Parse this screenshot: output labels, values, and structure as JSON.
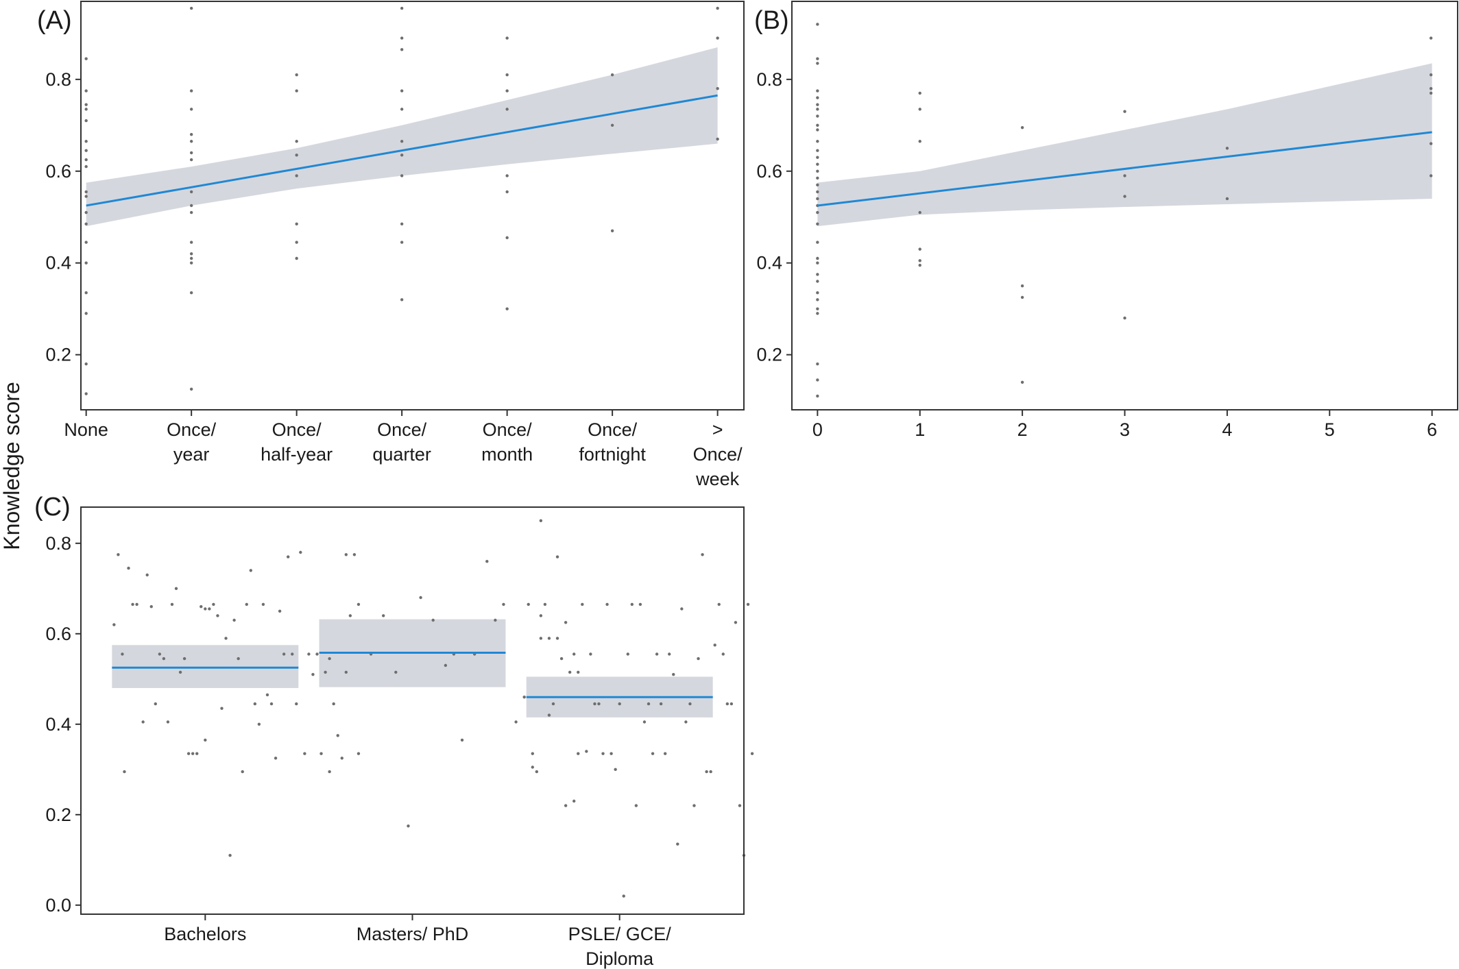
{
  "figure": {
    "ylabel": "Knowledge score",
    "colors": {
      "line": "#1f88d4",
      "band": "#d5d7de",
      "point": "#6e6e6e",
      "axis": "#333333"
    }
  },
  "chart_data": [
    {
      "panel": "(A)",
      "type": "scatter",
      "categories": [
        "None",
        "Once/ year",
        "Once/ half-year",
        "Once/ quarter",
        "Once/ month",
        "Once/ fortnight",
        "> Once/ week"
      ],
      "xlim": [
        -0.05,
        6.25
      ],
      "ylim": [
        0.08,
        0.97
      ],
      "yticks": [
        0.2,
        0.4,
        0.6,
        0.8
      ],
      "fit": {
        "x": [
          0,
          6
        ],
        "y": [
          0.525,
          0.765
        ]
      },
      "ci": {
        "x": [
          0,
          1,
          2,
          3,
          4,
          5,
          6
        ],
        "lower": [
          0.48,
          0.525,
          0.562,
          0.59,
          0.615,
          0.638,
          0.66
        ],
        "upper": [
          0.575,
          0.61,
          0.65,
          0.7,
          0.755,
          0.81,
          0.87
        ]
      },
      "points": [
        [
          0,
          0.845
        ],
        [
          0,
          0.775
        ],
        [
          0,
          0.745
        ],
        [
          0,
          0.735
        ],
        [
          0,
          0.71
        ],
        [
          0,
          0.665
        ],
        [
          0,
          0.645
        ],
        [
          0,
          0.625
        ],
        [
          0,
          0.61
        ],
        [
          0,
          0.555
        ],
        [
          0,
          0.545
        ],
        [
          0,
          0.51
        ],
        [
          0,
          0.485
        ],
        [
          0,
          0.445
        ],
        [
          0,
          0.4
        ],
        [
          0,
          0.335
        ],
        [
          0,
          0.29
        ],
        [
          0,
          0.18
        ],
        [
          0,
          0.115
        ],
        [
          1,
          0.955
        ],
        [
          1,
          0.775
        ],
        [
          1,
          0.735
        ],
        [
          1,
          0.68
        ],
        [
          1,
          0.665
        ],
        [
          1,
          0.64
        ],
        [
          1,
          0.625
        ],
        [
          1,
          0.555
        ],
        [
          1,
          0.525
        ],
        [
          1,
          0.51
        ],
        [
          1,
          0.445
        ],
        [
          1,
          0.42
        ],
        [
          1,
          0.41
        ],
        [
          1,
          0.4
        ],
        [
          1,
          0.335
        ],
        [
          1,
          0.125
        ],
        [
          2,
          0.81
        ],
        [
          2,
          0.775
        ],
        [
          2,
          0.665
        ],
        [
          2,
          0.635
        ],
        [
          2,
          0.59
        ],
        [
          2,
          0.485
        ],
        [
          2,
          0.445
        ],
        [
          2,
          0.41
        ],
        [
          3,
          0.955
        ],
        [
          3,
          0.89
        ],
        [
          3,
          0.865
        ],
        [
          3,
          0.775
        ],
        [
          3,
          0.735
        ],
        [
          3,
          0.665
        ],
        [
          3,
          0.635
        ],
        [
          3,
          0.59
        ],
        [
          3,
          0.485
        ],
        [
          3,
          0.445
        ],
        [
          3,
          0.32
        ],
        [
          4,
          0.89
        ],
        [
          4,
          0.81
        ],
        [
          4,
          0.775
        ],
        [
          4,
          0.735
        ],
        [
          4,
          0.59
        ],
        [
          4,
          0.555
        ],
        [
          4,
          0.455
        ],
        [
          4,
          0.3
        ],
        [
          5,
          0.81
        ],
        [
          5,
          0.7
        ],
        [
          5,
          0.47
        ],
        [
          6,
          0.955
        ],
        [
          6,
          0.89
        ],
        [
          6,
          0.78
        ],
        [
          6,
          0.67
        ]
      ]
    },
    {
      "panel": "(B)",
      "type": "scatter",
      "xticks": [
        0,
        1,
        2,
        3,
        4,
        5,
        6
      ],
      "xlim": [
        -0.25,
        6.25
      ],
      "ylim": [
        0.08,
        0.97
      ],
      "yticks": [
        0.2,
        0.4,
        0.6,
        0.8
      ],
      "fit": {
        "x": [
          0,
          6
        ],
        "y": [
          0.525,
          0.685
        ]
      },
      "ci": {
        "x": [
          0,
          1,
          2,
          3,
          4,
          5,
          6
        ],
        "lower": [
          0.48,
          0.505,
          0.515,
          0.522,
          0.528,
          0.534,
          0.54
        ],
        "upper": [
          0.575,
          0.6,
          0.645,
          0.69,
          0.735,
          0.785,
          0.835
        ]
      },
      "points": [
        [
          0,
          0.92
        ],
        [
          0,
          0.845
        ],
        [
          0,
          0.835
        ],
        [
          0,
          0.775
        ],
        [
          0,
          0.76
        ],
        [
          0,
          0.745
        ],
        [
          0,
          0.735
        ],
        [
          0,
          0.72
        ],
        [
          0,
          0.7
        ],
        [
          0,
          0.69
        ],
        [
          0,
          0.665
        ],
        [
          0,
          0.645
        ],
        [
          0,
          0.63
        ],
        [
          0,
          0.615
        ],
        [
          0,
          0.6
        ],
        [
          0,
          0.585
        ],
        [
          0,
          0.57
        ],
        [
          0,
          0.555
        ],
        [
          0,
          0.54
        ],
        [
          0,
          0.525
        ],
        [
          0,
          0.51
        ],
        [
          0,
          0.485
        ],
        [
          0,
          0.445
        ],
        [
          0,
          0.41
        ],
        [
          0,
          0.4
        ],
        [
          0,
          0.375
        ],
        [
          0,
          0.36
        ],
        [
          0,
          0.335
        ],
        [
          0,
          0.32
        ],
        [
          0,
          0.3
        ],
        [
          0,
          0.29
        ],
        [
          0,
          0.18
        ],
        [
          0,
          0.145
        ],
        [
          0,
          0.11
        ],
        [
          1,
          0.77
        ],
        [
          1,
          0.735
        ],
        [
          1,
          0.665
        ],
        [
          1,
          0.51
        ],
        [
          1,
          0.43
        ],
        [
          1,
          0.405
        ],
        [
          1,
          0.395
        ],
        [
          2,
          0.695
        ],
        [
          2,
          0.35
        ],
        [
          2,
          0.325
        ],
        [
          2,
          0.14
        ],
        [
          3,
          0.73
        ],
        [
          3,
          0.59
        ],
        [
          3,
          0.545
        ],
        [
          3,
          0.28
        ],
        [
          4,
          0.65
        ],
        [
          4,
          0.54
        ],
        [
          5.99,
          0.89
        ],
        [
          5.99,
          0.81
        ],
        [
          5.99,
          0.78
        ],
        [
          5.99,
          0.77
        ],
        [
          5.99,
          0.66
        ],
        [
          5.99,
          0.59
        ]
      ]
    },
    {
      "panel": "(C)",
      "type": "scatter",
      "categories": [
        "Bachelors",
        "Masters/ PhD",
        "PSLE/ GCE/ Diploma"
      ],
      "xlim": [
        0.4,
        3.6
      ],
      "ylim": [
        -0.02,
        0.88
      ],
      "yticks": [
        0.0,
        0.2,
        0.4,
        0.6,
        0.8
      ],
      "groups": [
        {
          "mean": 0.525,
          "lower": 0.48,
          "upper": 0.575,
          "x_start": 0.55,
          "x_end": 1.45
        },
        {
          "mean": 0.558,
          "lower": 0.482,
          "upper": 0.632,
          "x_start": 1.55,
          "x_end": 2.45
        },
        {
          "mean": 0.46,
          "lower": 0.415,
          "upper": 0.505,
          "x_start": 2.55,
          "x_end": 3.45
        }
      ],
      "points": [
        [
          0.56,
          0.62
        ],
        [
          0.58,
          0.775
        ],
        [
          0.6,
          0.555
        ],
        [
          0.61,
          0.295
        ],
        [
          0.63,
          0.745
        ],
        [
          0.65,
          0.665
        ],
        [
          0.67,
          0.665
        ],
        [
          0.7,
          0.405
        ],
        [
          0.72,
          0.73
        ],
        [
          0.74,
          0.66
        ],
        [
          0.76,
          0.445
        ],
        [
          0.78,
          0.555
        ],
        [
          0.8,
          0.545
        ],
        [
          0.82,
          0.405
        ],
        [
          0.84,
          0.665
        ],
        [
          0.86,
          0.7
        ],
        [
          0.88,
          0.515
        ],
        [
          0.9,
          0.545
        ],
        [
          0.92,
          0.335
        ],
        [
          0.94,
          0.335
        ],
        [
          0.96,
          0.335
        ],
        [
          0.98,
          0.66
        ],
        [
          1.0,
          0.365
        ],
        [
          1.0,
          0.655
        ],
        [
          1.02,
          0.655
        ],
        [
          1.04,
          0.665
        ],
        [
          1.06,
          0.64
        ],
        [
          1.08,
          0.435
        ],
        [
          1.1,
          0.59
        ],
        [
          1.12,
          0.11
        ],
        [
          1.14,
          0.63
        ],
        [
          1.16,
          0.545
        ],
        [
          1.18,
          0.295
        ],
        [
          1.2,
          0.665
        ],
        [
          1.22,
          0.74
        ],
        [
          1.24,
          0.445
        ],
        [
          1.26,
          0.4
        ],
        [
          1.28,
          0.665
        ],
        [
          1.3,
          0.465
        ],
        [
          1.32,
          0.445
        ],
        [
          1.34,
          0.325
        ],
        [
          1.36,
          0.65
        ],
        [
          1.38,
          0.555
        ],
        [
          1.4,
          0.77
        ],
        [
          1.42,
          0.555
        ],
        [
          1.44,
          0.445
        ],
        [
          1.46,
          0.78
        ],
        [
          1.48,
          0.335
        ],
        [
          1.5,
          0.555
        ],
        [
          1.52,
          0.51
        ],
        [
          1.54,
          0.555
        ],
        [
          1.56,
          0.335
        ],
        [
          1.58,
          0.515
        ],
        [
          1.6,
          0.295
        ],
        [
          1.62,
          0.445
        ],
        [
          1.64,
          0.375
        ],
        [
          1.66,
          0.325
        ],
        [
          1.68,
          0.515
        ],
        [
          1.7,
          0.64
        ],
        [
          1.72,
          0.775
        ],
        [
          1.74,
          0.335
        ],
        [
          1.6,
          0.545
        ],
        [
          1.68,
          0.775
        ],
        [
          1.74,
          0.665
        ],
        [
          1.8,
          0.555
        ],
        [
          1.86,
          0.64
        ],
        [
          1.92,
          0.515
        ],
        [
          1.98,
          0.175
        ],
        [
          2.04,
          0.68
        ],
        [
          2.1,
          0.63
        ],
        [
          2.16,
          0.53
        ],
        [
          2.2,
          0.555
        ],
        [
          2.24,
          0.365
        ],
        [
          2.3,
          0.555
        ],
        [
          2.36,
          0.76
        ],
        [
          2.4,
          0.63
        ],
        [
          2.44,
          0.665
        ],
        [
          2.5,
          0.405
        ],
        [
          2.54,
          0.46
        ],
        [
          2.58,
          0.305
        ],
        [
          2.62,
          0.59
        ],
        [
          2.66,
          0.59
        ],
        [
          2.7,
          0.59
        ],
        [
          2.74,
          0.625
        ],
        [
          2.78,
          0.555
        ],
        [
          2.56,
          0.665
        ],
        [
          2.58,
          0.335
        ],
        [
          2.6,
          0.295
        ],
        [
          2.62,
          0.64
        ],
        [
          2.62,
          0.85
        ],
        [
          2.64,
          0.665
        ],
        [
          2.66,
          0.42
        ],
        [
          2.68,
          0.445
        ],
        [
          2.7,
          0.77
        ],
        [
          2.72,
          0.545
        ],
        [
          2.74,
          0.22
        ],
        [
          2.76,
          0.515
        ],
        [
          2.78,
          0.23
        ],
        [
          2.8,
          0.515
        ],
        [
          2.8,
          0.335
        ],
        [
          2.82,
          0.665
        ],
        [
          2.84,
          0.34
        ],
        [
          2.86,
          0.555
        ],
        [
          2.88,
          0.445
        ],
        [
          2.9,
          0.445
        ],
        [
          2.92,
          0.335
        ],
        [
          2.94,
          0.665
        ],
        [
          2.96,
          0.335
        ],
        [
          2.98,
          0.3
        ],
        [
          3.0,
          0.445
        ],
        [
          3.02,
          0.02
        ],
        [
          3.04,
          0.555
        ],
        [
          3.06,
          0.665
        ],
        [
          3.08,
          0.22
        ],
        [
          3.1,
          0.665
        ],
        [
          3.12,
          0.405
        ],
        [
          3.14,
          0.445
        ],
        [
          3.16,
          0.335
        ],
        [
          3.18,
          0.555
        ],
        [
          3.2,
          0.445
        ],
        [
          3.22,
          0.335
        ],
        [
          3.24,
          0.555
        ],
        [
          3.26,
          0.51
        ],
        [
          3.28,
          0.135
        ],
        [
          3.3,
          0.655
        ],
        [
          3.32,
          0.405
        ],
        [
          3.34,
          0.445
        ],
        [
          3.36,
          0.22
        ],
        [
          3.38,
          0.545
        ],
        [
          3.4,
          0.775
        ],
        [
          3.42,
          0.295
        ],
        [
          3.44,
          0.295
        ],
        [
          3.46,
          0.575
        ],
        [
          3.48,
          0.665
        ],
        [
          3.5,
          0.555
        ],
        [
          3.52,
          0.445
        ],
        [
          3.54,
          0.445
        ],
        [
          3.56,
          0.625
        ],
        [
          3.58,
          0.22
        ],
        [
          3.6,
          0.11
        ],
        [
          3.62,
          0.665
        ],
        [
          3.64,
          0.335
        ]
      ]
    }
  ]
}
